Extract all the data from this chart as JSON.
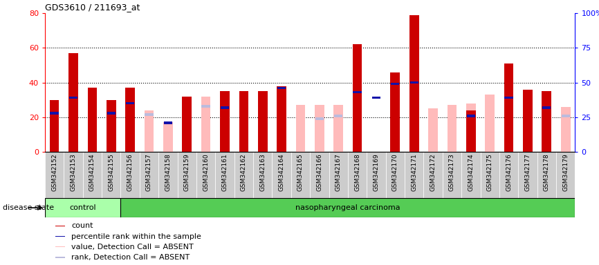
{
  "title": "GDS3610 / 211693_at",
  "samples": [
    "GSM342152",
    "GSM342153",
    "GSM342154",
    "GSM342155",
    "GSM342156",
    "GSM342157",
    "GSM342158",
    "GSM342159",
    "GSM342160",
    "GSM342161",
    "GSM342162",
    "GSM342163",
    "GSM342164",
    "GSM342165",
    "GSM342166",
    "GSM342167",
    "GSM342168",
    "GSM342169",
    "GSM342170",
    "GSM342171",
    "GSM342172",
    "GSM342173",
    "GSM342174",
    "GSM342175",
    "GSM342176",
    "GSM342177",
    "GSM342178",
    "GSM342179"
  ],
  "count": [
    30,
    57,
    37,
    30,
    37,
    null,
    null,
    32,
    null,
    35,
    35,
    35,
    38,
    null,
    null,
    null,
    62,
    null,
    46,
    79,
    null,
    null,
    24,
    null,
    51,
    36,
    35,
    null
  ],
  "percentile": [
    29,
    40,
    null,
    29,
    36,
    null,
    22,
    null,
    null,
    33,
    null,
    null,
    47,
    null,
    null,
    null,
    44,
    40,
    50,
    51,
    null,
    null,
    27,
    null,
    40,
    null,
    33,
    null
  ],
  "value_absent": [
    null,
    null,
    null,
    null,
    null,
    24,
    17,
    null,
    32,
    null,
    null,
    null,
    null,
    27,
    27,
    27,
    null,
    null,
    null,
    null,
    25,
    27,
    28,
    33,
    null,
    null,
    null,
    26
  ],
  "rank_absent": [
    null,
    null,
    null,
    null,
    null,
    28,
    null,
    null,
    34,
    null,
    null,
    null,
    null,
    null,
    25,
    27,
    null,
    null,
    null,
    null,
    null,
    null,
    null,
    null,
    null,
    null,
    null,
    27
  ],
  "n_control": 4,
  "ylim_left": [
    0,
    80
  ],
  "ylim_right": [
    0,
    100
  ],
  "yticks_left": [
    0,
    20,
    40,
    60,
    80
  ],
  "yticks_right": [
    0,
    25,
    50,
    75,
    100
  ],
  "ytick_right_labels": [
    "0",
    "25",
    "50",
    "75",
    "100%"
  ],
  "color_count": "#cc0000",
  "color_percentile": "#1111aa",
  "color_value_absent": "#ffbbbb",
  "color_rank_absent": "#bbbbdd",
  "color_control_bg": "#aaffaa",
  "color_cancer_bg": "#55cc55",
  "color_xtick_bg": "#cccccc",
  "bar_width": 0.5,
  "blue_square_size": 1.5
}
